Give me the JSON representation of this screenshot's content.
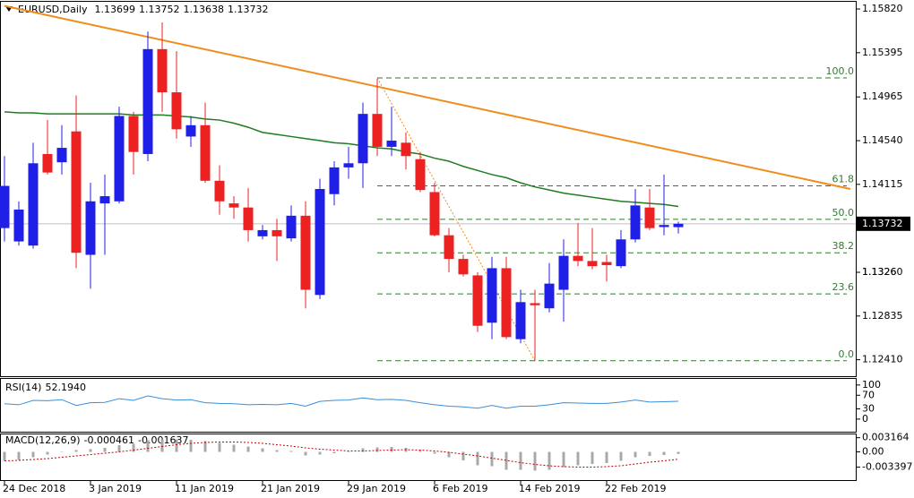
{
  "chart_data": [
    {
      "type": "candlestick",
      "title": "EURUSD,Daily",
      "categories": [
        "24 Dec 2018",
        null,
        null,
        null,
        null,
        null,
        "3 Jan 2019",
        null,
        null,
        null,
        null,
        null,
        "11 Jan 2019",
        null,
        null,
        null,
        null,
        null,
        "21 Jan 2019",
        null,
        null,
        null,
        null,
        null,
        "29 Jan 2019",
        null,
        null,
        null,
        null,
        null,
        "6 Feb 2019",
        null,
        null,
        null,
        null,
        null,
        "14 Feb 2019",
        null,
        null,
        null,
        null,
        null,
        "22 Feb 2019",
        null,
        null,
        null,
        null,
        null
      ],
      "open": [
        1.1369,
        1.1356,
        1.1352,
        1.1441,
        1.1433,
        1.1463,
        1.1343,
        1.1393,
        1.1395,
        1.1478,
        1.1441,
        1.1543,
        1.1501,
        1.1458,
        1.1469,
        1.1415,
        1.1393,
        1.1389,
        1.1361,
        1.1367,
        1.1359,
        1.1381,
        1.1304,
        1.1402,
        1.1428,
        1.1432,
        1.148,
        1.1448,
        1.1452,
        1.1436,
        1.1404,
        1.1362,
        1.1339,
        1.1323,
        1.1277,
        1.133,
        1.1261,
        1.1296,
        1.1291,
        1.1309,
        1.1342,
        1.1337,
        1.1336,
        1.1332,
        1.1358,
        1.1389,
        1.137,
        1.13699
      ],
      "high": [
        1.1439,
        1.1395,
        1.1452,
        1.1474,
        1.1469,
        1.1498,
        1.1413,
        1.1421,
        1.1487,
        1.1482,
        1.156,
        1.1569,
        1.1541,
        1.1478,
        1.1491,
        1.143,
        1.14,
        1.1408,
        1.1372,
        1.1378,
        1.1391,
        1.1395,
        1.1417,
        1.1434,
        1.1448,
        1.1491,
        1.1514,
        1.1487,
        1.1462,
        1.1443,
        1.1413,
        1.1369,
        1.1343,
        1.1326,
        1.1341,
        1.1341,
        1.1309,
        1.1309,
        1.1335,
        1.1358,
        1.1374,
        1.1369,
        1.1343,
        1.1367,
        1.1407,
        1.1407,
        1.1421,
        1.13752
      ],
      "low": [
        1.1356,
        1.1352,
        1.1349,
        1.1421,
        1.1421,
        1.133,
        1.131,
        1.1343,
        1.1393,
        1.1421,
        1.1434,
        1.1482,
        1.1456,
        1.1448,
        1.1413,
        1.1382,
        1.1378,
        1.1356,
        1.1358,
        1.1337,
        1.1356,
        1.1291,
        1.13,
        1.1391,
        1.1417,
        1.1408,
        1.1439,
        1.1439,
        1.1426,
        1.1404,
        1.1361,
        1.1326,
        1.1322,
        1.1268,
        1.1261,
        1.1261,
        1.1257,
        1.124,
        1.1287,
        1.1278,
        1.1332,
        1.1329,
        1.1317,
        1.133,
        1.1355,
        1.1367,
        1.1362,
        1.13638
      ],
      "close": [
        1.141,
        1.1387,
        1.1432,
        1.1423,
        1.1447,
        1.1345,
        1.1395,
        1.14,
        1.1478,
        1.1443,
        1.1543,
        1.1501,
        1.1465,
        1.1469,
        1.1415,
        1.1395,
        1.1389,
        1.1367,
        1.1367,
        1.1361,
        1.1381,
        1.1309,
        1.1407,
        1.1428,
        1.1432,
        1.148,
        1.1448,
        1.1454,
        1.1439,
        1.1406,
        1.1362,
        1.1339,
        1.1324,
        1.1274,
        1.133,
        1.1263,
        1.1297,
        1.1294,
        1.1315,
        1.1342,
        1.1337,
        1.1332,
        1.1333,
        1.1358,
        1.1391,
        1.1369,
        1.1372,
        1.13732
      ],
      "up_color": "#1f1fe8",
      "down_color": "#ec2222",
      "ylim": [
        1.1225,
        1.1589
      ],
      "yticks": [
        {
          "value": 1.1582,
          "label": "1.15820"
        },
        1.15395,
        1.14965,
        {
          "value": 1.1454,
          "label": "1.14540"
        },
        1.14115,
        1.1326,
        {
          "value": 1.1326,
          "label": "1.13260"
        },
        1.12835,
        {
          "value": 1.1241,
          "label": "1.12410"
        }
      ],
      "ma": {
        "color": "#1e7d1e",
        "values": [
          1.1482,
          1.1481,
          1.1481,
          1.148,
          1.148,
          1.148,
          1.148,
          1.148,
          1.148,
          1.1479,
          1.1479,
          1.1479,
          1.1478,
          1.1477,
          1.1475,
          1.1474,
          1.1471,
          1.1467,
          1.1462,
          1.146,
          1.1458,
          1.1456,
          1.1454,
          1.1452,
          1.1451,
          1.1449,
          1.1447,
          1.1446,
          1.1443,
          1.1441,
          1.1437,
          1.1434,
          1.1429,
          1.1425,
          1.1421,
          1.1418,
          1.1413,
          1.1409,
          1.1406,
          1.1403,
          1.1401,
          1.1399,
          1.1397,
          1.1395,
          1.1394,
          1.1393,
          1.1392,
          1.139
        ]
      },
      "trendline": {
        "color": "#f08c1a",
        "points": [
          [
            0,
            1.1585
          ],
          [
            59,
            1.1407
          ]
        ]
      },
      "fib": {
        "color": "#2e7d2e",
        "anchor_color": "#f08c1a",
        "start_index": 26,
        "end_index": 37,
        "levels": [
          {
            "value": 1.1515,
            "label": "100.0"
          },
          {
            "value": 1.141,
            "label": "61.8"
          },
          {
            "value": 1.13775,
            "label": "50.0"
          },
          {
            "value": 1.1345,
            "label": "38.2"
          },
          {
            "value": 1.1305,
            "label": "23.6"
          },
          {
            "value": 1.124,
            "label": "0.0"
          }
        ]
      }
    },
    {
      "type": "line",
      "title": "RSI(14)",
      "color": "#3a8fd9",
      "values": [
        45,
        42,
        55,
        54,
        57,
        40,
        48,
        49,
        60,
        55,
        68,
        60,
        56,
        57,
        48,
        46,
        45,
        42,
        43,
        42,
        46,
        38,
        52,
        55,
        56,
        62,
        57,
        58,
        55,
        48,
        42,
        38,
        36,
        32,
        40,
        32,
        38,
        38,
        42,
        48,
        47,
        46,
        46,
        50,
        56,
        50,
        51,
        52.194
      ],
      "value_labels": [
        null,
        null,
        null,
        null,
        null,
        null,
        null,
        null,
        null,
        null,
        null,
        null,
        null,
        null,
        null,
        null,
        null,
        null,
        null,
        null,
        null,
        null,
        null,
        null,
        null,
        null,
        null,
        null,
        null,
        null,
        null,
        null,
        null,
        null,
        null,
        null,
        null,
        null,
        null,
        null,
        null,
        null,
        null,
        null,
        null,
        null,
        null,
        "52.1940"
      ],
      "ylim": [
        -37,
        118
      ],
      "yticks": [
        100,
        70,
        30,
        0
      ]
    },
    {
      "type": "macd",
      "title": "MACD(12,26,9)",
      "series": [
        {
          "name": "MACD",
          "color": "#a8a8a8",
          "values": [
            -0.002,
            -0.0018,
            -0.0012,
            -0.0006,
            0.0,
            0.0004,
            0.0006,
            0.0009,
            0.0015,
            0.0018,
            0.0026,
            0.0028,
            0.0028,
            0.0027,
            0.0024,
            0.002,
            0.0016,
            0.0012,
            0.0008,
            0.0004,
            0.0002,
            -0.0008,
            -0.0006,
            -0.0003,
            -0.0001,
            0.0008,
            0.001,
            0.0011,
            0.0009,
            0.0004,
            -0.0004,
            -0.0012,
            -0.0019,
            -0.003,
            -0.0032,
            -0.004,
            -0.004,
            -0.0042,
            -0.004,
            -0.0034,
            -0.003,
            -0.0027,
            -0.0025,
            -0.002,
            -0.0012,
            -0.0009,
            -0.0007,
            -0.000461
          ]
        },
        {
          "name": "Signal",
          "color": "#c00000",
          "values": [
            -0.002,
            -0.0019,
            -0.0017,
            -0.0015,
            -0.0012,
            -0.0009,
            -0.0006,
            -0.0003,
            0.0,
            0.0004,
            0.0008,
            0.0012,
            0.0016,
            0.0019,
            0.0021,
            0.0022,
            0.0022,
            0.0021,
            0.0019,
            0.0016,
            0.0013,
            0.0009,
            0.0006,
            0.0004,
            0.0002,
            0.0002,
            0.0003,
            0.0004,
            0.0005,
            0.0004,
            0.0002,
            -0.0001,
            -0.0005,
            -0.0009,
            -0.0014,
            -0.0019,
            -0.0024,
            -0.0028,
            -0.0031,
            -0.0033,
            -0.0034,
            -0.0034,
            -0.0033,
            -0.0031,
            -0.0027,
            -0.0023,
            -0.002,
            -0.001637
          ]
        }
      ],
      "ylim": [
        -0.0063,
        0.0039
      ],
      "yticks": [
        0.003164,
        {
          "value": 0,
          "label": "0.00"
        },
        -0.003397
      ]
    }
  ]
}
